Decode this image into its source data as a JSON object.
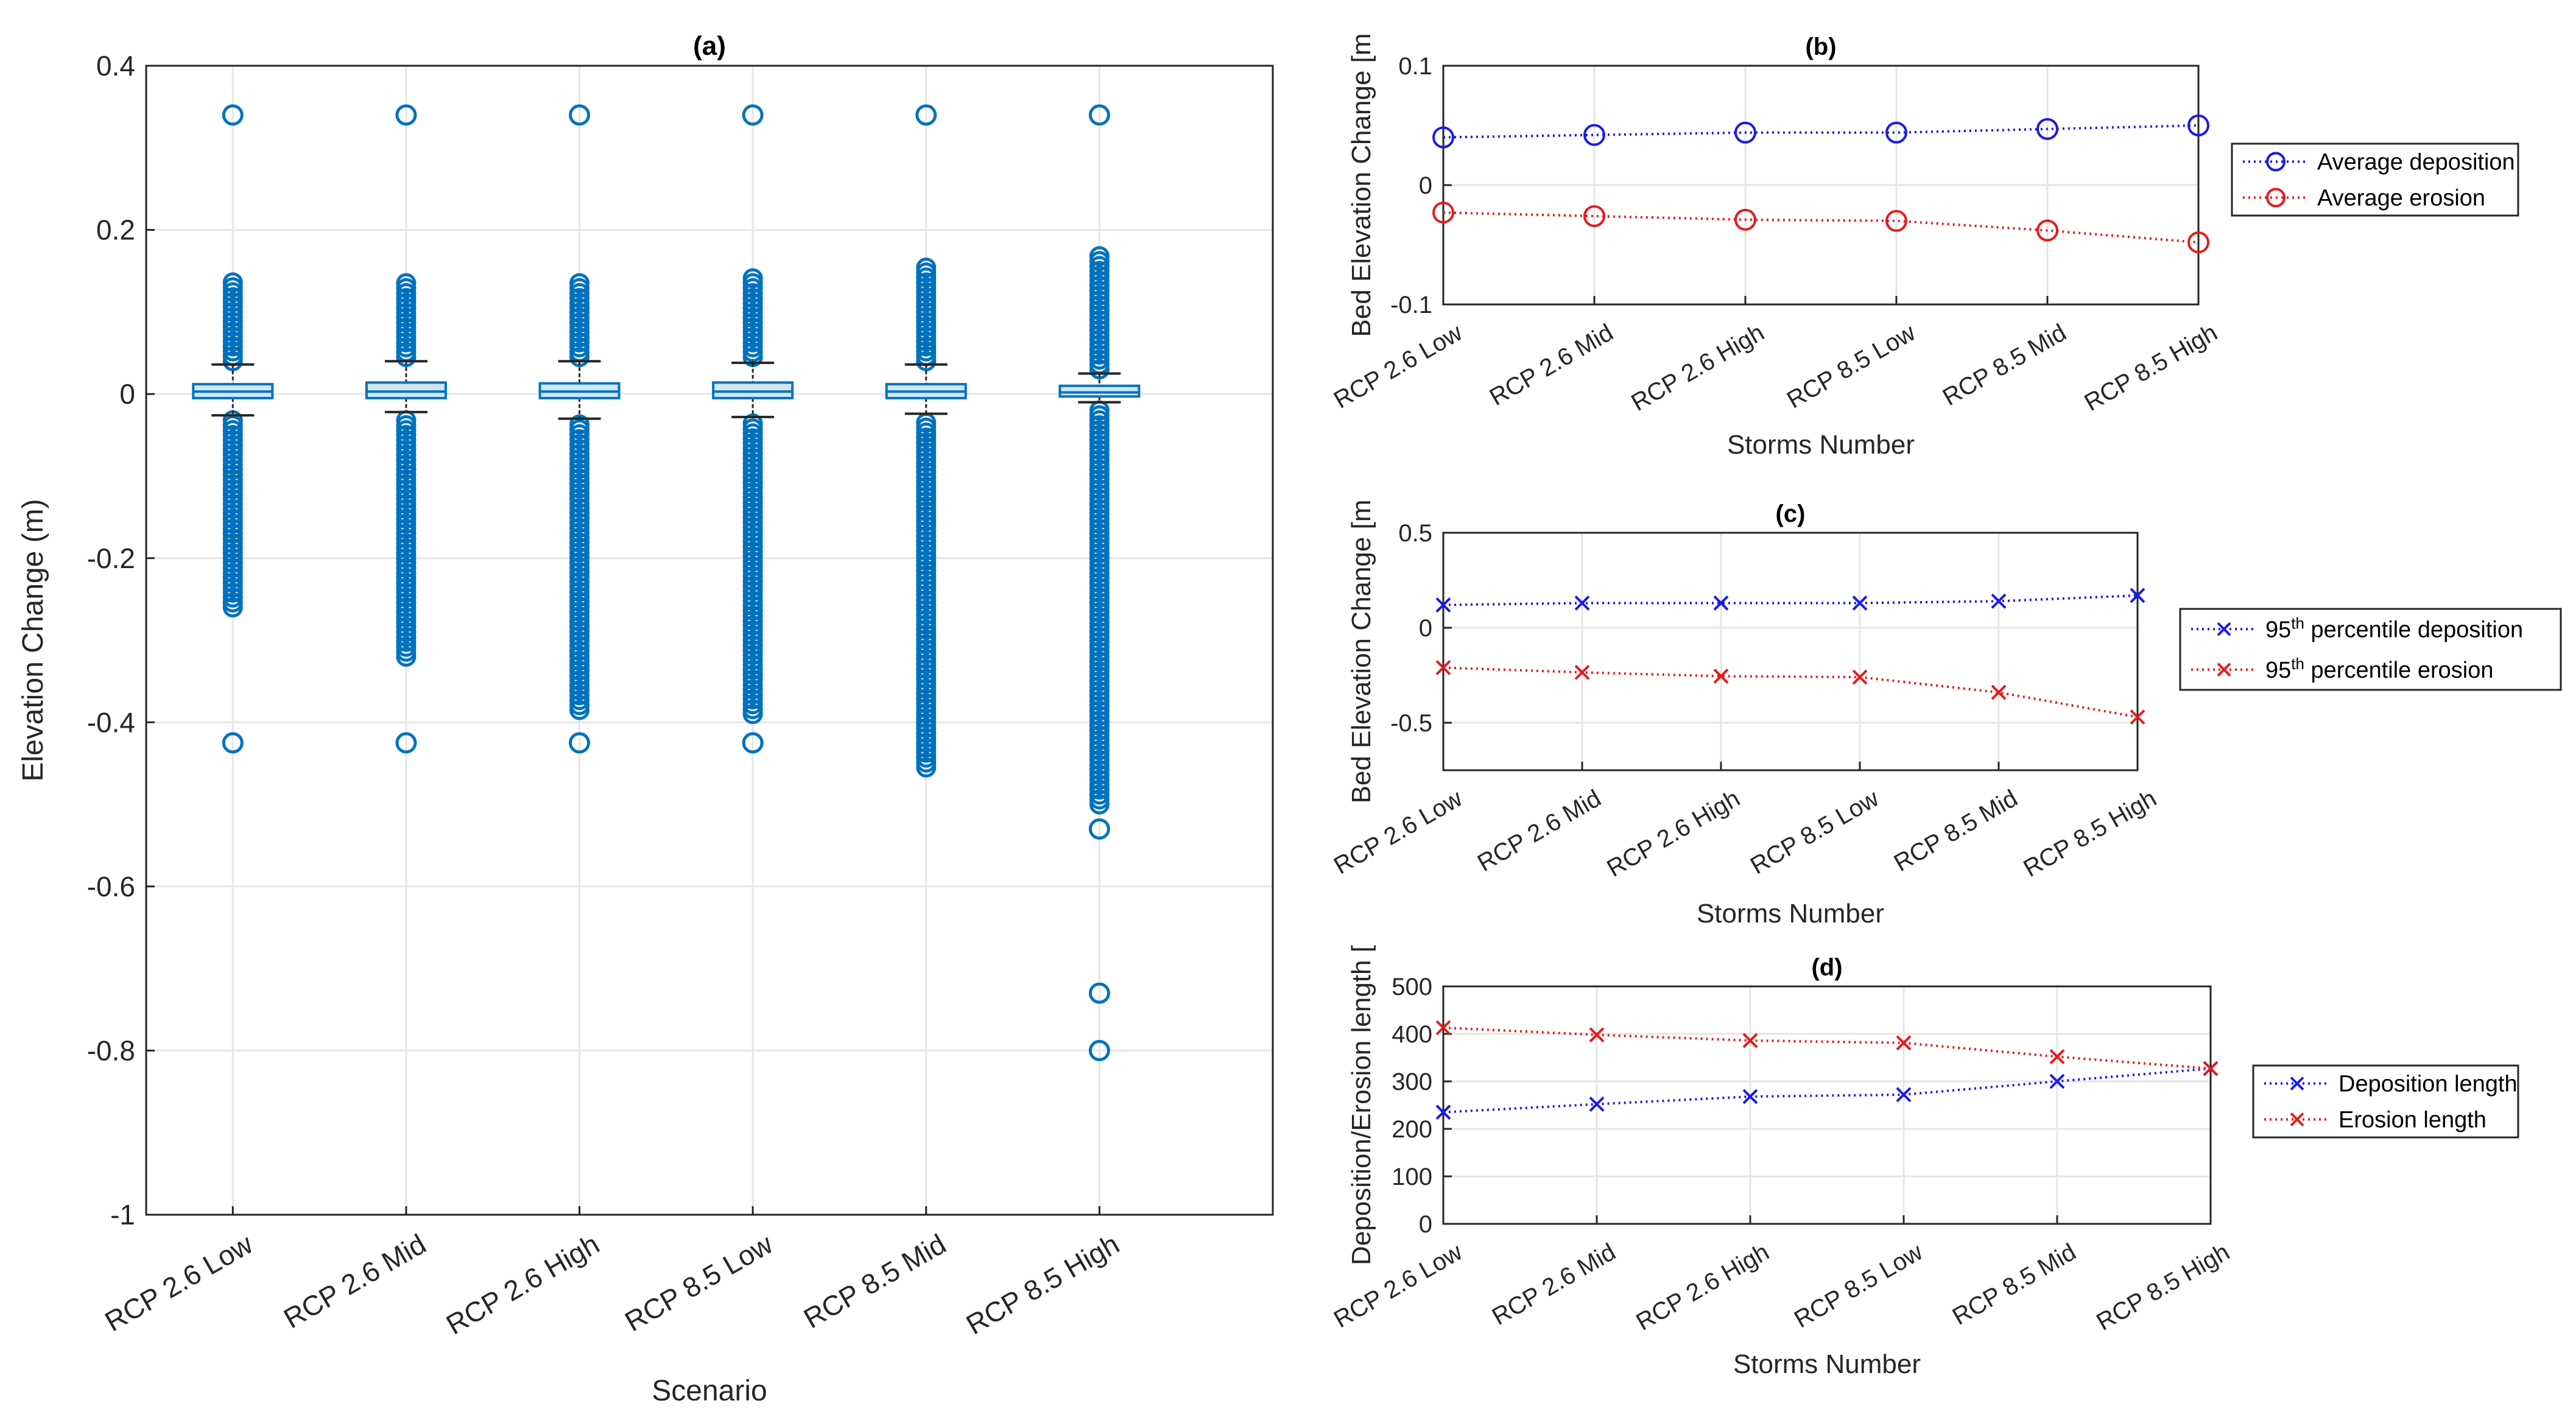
{
  "colors": {
    "box": "#0072BD",
    "box_fill": "#cfe6f7",
    "deposition": "#1a1ae6",
    "erosion": "#e61a1a",
    "grid": "#e6e6e6",
    "axis": "#262626"
  },
  "chart_data": [
    {
      "id": "a",
      "type": "box",
      "title": "(a)",
      "xlabel": "Scenario",
      "ylabel": "Elevation Change (m)",
      "categories": [
        "RCP 2.6 Low",
        "RCP 2.6 Mid",
        "RCP 2.6 High",
        "RCP 8.5 Low",
        "RCP 8.5 Mid",
        "RCP 8.5 High"
      ],
      "ylim": [
        -1,
        0.4
      ],
      "yticks": [
        -1,
        -0.8,
        -0.6,
        -0.4,
        -0.2,
        0,
        0.2,
        0.4
      ],
      "ytick_labels": [
        "-1",
        "-0.8",
        "-0.6",
        "-0.4",
        "-0.2",
        "0",
        "0.2",
        "0.4"
      ],
      "grid": true,
      "boxes": [
        {
          "q1": -0.005,
          "median": 0.003,
          "q3": 0.012,
          "whisker_low": -0.026,
          "whisker_high": 0.036,
          "outlier_high_range": [
            0.04,
            0.14
          ],
          "outlier_low_range": [
            -0.26,
            -0.03
          ],
          "outliers": [
            0.34,
            -0.425
          ]
        },
        {
          "q1": -0.005,
          "median": 0.003,
          "q3": 0.014,
          "whisker_low": -0.022,
          "whisker_high": 0.04,
          "outlier_high_range": [
            0.045,
            0.135
          ],
          "outlier_low_range": [
            -0.32,
            -0.03
          ],
          "outliers": [
            0.34,
            -0.425
          ]
        },
        {
          "q1": -0.005,
          "median": 0.003,
          "q3": 0.013,
          "whisker_low": -0.03,
          "whisker_high": 0.04,
          "outlier_high_range": [
            0.045,
            0.14
          ],
          "outlier_low_range": [
            -0.385,
            -0.035
          ],
          "outliers": [
            0.34,
            -0.425
          ]
        },
        {
          "q1": -0.005,
          "median": 0.003,
          "q3": 0.014,
          "whisker_low": -0.028,
          "whisker_high": 0.038,
          "outlier_high_range": [
            0.045,
            0.145
          ],
          "outlier_low_range": [
            -0.39,
            -0.035
          ],
          "outliers": [
            0.34,
            -0.425
          ]
        },
        {
          "q1": -0.005,
          "median": 0.003,
          "q3": 0.012,
          "whisker_low": -0.024,
          "whisker_high": 0.036,
          "outlier_high_range": [
            0.04,
            0.155
          ],
          "outlier_low_range": [
            -0.455,
            -0.03
          ],
          "outliers": [
            0.34
          ]
        },
        {
          "q1": -0.003,
          "median": 0.002,
          "q3": 0.01,
          "whisker_low": -0.01,
          "whisker_high": 0.025,
          "outlier_high_range": [
            0.03,
            0.17
          ],
          "outlier_low_range": [
            -0.5,
            -0.02
          ],
          "outliers": [
            0.34,
            -0.53,
            -0.73,
            -0.8
          ]
        }
      ]
    },
    {
      "id": "b",
      "type": "line",
      "title": "(b)",
      "xlabel": "Storms Number",
      "ylabel": "Bed Elevation Change [m]",
      "ylabel_visible": "Bed Elevation Change [m",
      "categories": [
        "RCP 2.6 Low",
        "RCP 2.6 Mid",
        "RCP 2.6 High",
        "RCP 8.5 Low",
        "RCP 8.5 Mid",
        "RCP 8.5 High"
      ],
      "ylim": [
        -0.1,
        0.1
      ],
      "yticks": [
        -0.1,
        0,
        0.1
      ],
      "ytick_labels": [
        "-0.1",
        "0",
        "0.1"
      ],
      "grid": true,
      "legend_position": "right",
      "series": [
        {
          "name": "Average deposition",
          "marker": "circle",
          "color_key": "deposition",
          "values": [
            0.04,
            0.042,
            0.044,
            0.044,
            0.047,
            0.05
          ]
        },
        {
          "name": "Average erosion",
          "marker": "circle",
          "color_key": "erosion",
          "values": [
            -0.023,
            -0.026,
            -0.029,
            -0.03,
            -0.038,
            -0.048
          ]
        }
      ]
    },
    {
      "id": "c",
      "type": "line",
      "title": "(c)",
      "xlabel": "Storms Number",
      "ylabel": "Bed Elevation Change [m]",
      "ylabel_visible": "Bed Elevation Change [m",
      "categories": [
        "RCP 2.6 Low",
        "RCP 2.6 Mid",
        "RCP 2.6 High",
        "RCP 8.5 Low",
        "RCP 8.5 Mid",
        "RCP 8.5 High"
      ],
      "ylim": [
        -0.75,
        0.5
      ],
      "yticks": [
        -0.5,
        0,
        0.5
      ],
      "ytick_labels": [
        "-0.5",
        "0",
        "0.5"
      ],
      "grid": true,
      "legend_position": "right",
      "series": [
        {
          "name": "95th percentile deposition",
          "legend_parts": [
            "95",
            "th",
            " percentile deposition"
          ],
          "marker": "x",
          "color_key": "deposition",
          "values": [
            0.12,
            0.13,
            0.13,
            0.13,
            0.14,
            0.17
          ]
        },
        {
          "name": "95th percentile erosion",
          "legend_parts": [
            "95",
            "th",
            " percentile erosion"
          ],
          "marker": "x",
          "color_key": "erosion",
          "values": [
            -0.21,
            -0.235,
            -0.255,
            -0.26,
            -0.34,
            -0.47
          ]
        }
      ]
    },
    {
      "id": "d",
      "type": "line",
      "title": "(d)",
      "xlabel": "Storms Number",
      "ylabel": "Deposition/Erosion length [m]",
      "ylabel_visible": "Deposition/Erosion length [",
      "categories": [
        "RCP 2.6 Low",
        "RCP 2.6 Mid",
        "RCP 2.6 High",
        "RCP 8.5 Low",
        "RCP 8.5 Mid",
        "RCP 8.5 High"
      ],
      "ylim": [
        0,
        500
      ],
      "yticks": [
        0,
        100,
        200,
        300,
        400,
        500
      ],
      "ytick_labels": [
        "0",
        "100",
        "200",
        "300",
        "400",
        "500"
      ],
      "grid": true,
      "legend_position": "right",
      "series": [
        {
          "name": "Deposition length",
          "marker": "x",
          "color_key": "deposition",
          "values": [
            235,
            252,
            268,
            272,
            300,
            327
          ]
        },
        {
          "name": "Erosion length",
          "marker": "x",
          "color_key": "erosion",
          "values": [
            413,
            398,
            386,
            381,
            352,
            327
          ]
        }
      ]
    }
  ]
}
